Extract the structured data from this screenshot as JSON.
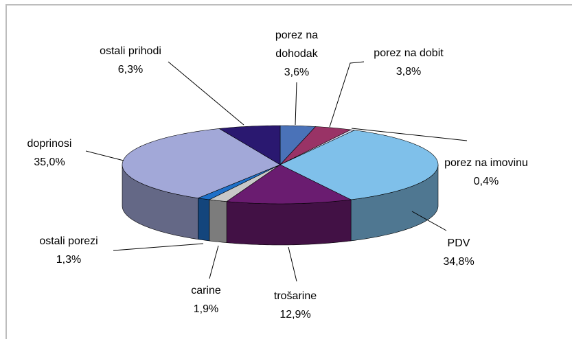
{
  "chart_data": {
    "type": "pie3d",
    "categories": [
      "porez na dohodak",
      "porez na dobit",
      "porez na imovinu",
      "PDV",
      "trošarine",
      "carine",
      "ostali porezi",
      "doprinosi",
      "ostali prihodi"
    ],
    "values": [
      3.6,
      3.8,
      0.4,
      34.8,
      12.9,
      1.9,
      1.3,
      35.0,
      6.3
    ],
    "value_labels": [
      "3,6%",
      "3,8%",
      "0,4%",
      "34,8%",
      "12,9%",
      "1,9%",
      "1,3%",
      "35,0%",
      "6,3%"
    ],
    "colors": [
      "#4a72b8",
      "#993366",
      "#d8d8f0",
      "#7fc0ea",
      "#6a1c70",
      "#c8c8c8",
      "#1f70c8",
      "#a2a8d8",
      "#2a1870"
    ]
  }
}
